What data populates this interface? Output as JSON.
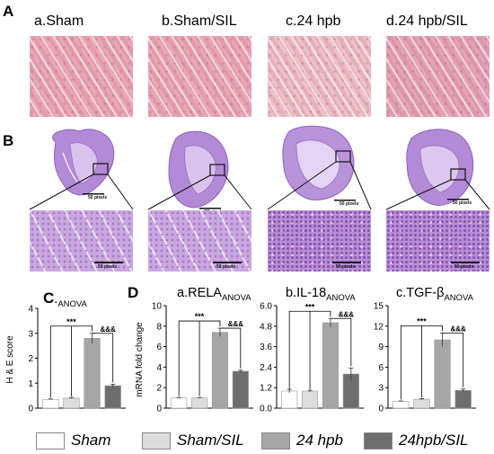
{
  "panels": {
    "A": {
      "label": "A",
      "titles": [
        "a.Sham",
        "b.Sham/SIL",
        "c.24 hpb",
        "d.24 hpb/SIL"
      ]
    },
    "B": {
      "label": "B",
      "scale_small": "50 pixels",
      "scale_large": "50 pixels"
    },
    "C": {
      "label": "C",
      "title_prefix": ".",
      "title_sub": "ANOVA"
    },
    "D": {
      "label": "D",
      "ylabel": "mRNA fold change"
    }
  },
  "legend": {
    "items": [
      {
        "label": "Sham",
        "color": "#ffffff",
        "italic": true
      },
      {
        "label": "Sham/SIL",
        "color": "#dcdcdc",
        "italic": true
      },
      {
        "label": "24 hpb",
        "color": "#a6a6a6",
        "italic": true
      },
      {
        "label": "24hpb/SIL",
        "color": "#6e6e6e",
        "italic": true
      }
    ]
  },
  "colors": {
    "sham": "#ffffff",
    "sham_sil": "#dcdcdc",
    "hpb24": "#a6a6a6",
    "hpb24_sil": "#6e6e6e"
  },
  "chart_data": [
    {
      "type": "bar",
      "panel": "C",
      "title": "C.ANOVA",
      "ylabel": "H & E score",
      "categories": [
        "Sham",
        "Sham/SIL",
        "24 hpb",
        "24hpb/SIL"
      ],
      "values": [
        0.35,
        0.4,
        2.8,
        0.9
      ],
      "errors": [
        0.02,
        0.03,
        0.2,
        0.06
      ],
      "ylim": [
        0,
        4
      ],
      "yticks": [
        "0",
        "1",
        "2",
        "3",
        "4"
      ],
      "sig": [
        "***",
        "&&&"
      ]
    },
    {
      "type": "bar",
      "panel": "D-a",
      "title": "a.RELA",
      "title_sub": "ANOVA",
      "categories": [
        "Sham",
        "Sham/SIL",
        "24 hpb",
        "24hpb/SIL"
      ],
      "values": [
        1.0,
        1.0,
        7.4,
        3.6
      ],
      "errors": [
        0.04,
        0.04,
        0.4,
        0.1
      ],
      "ylim": [
        0,
        10
      ],
      "yticks": [
        "0",
        "2",
        "4",
        "6",
        "8",
        "10"
      ],
      "sig": [
        "***",
        "&&&"
      ]
    },
    {
      "type": "bar",
      "panel": "D-b",
      "title": "b.IL-18",
      "title_sub": "ANOVA",
      "categories": [
        "Sham",
        "Sham/SIL",
        "24 hpb",
        "24hpb/SIL"
      ],
      "values": [
        1.0,
        1.0,
        5.0,
        2.0
      ],
      "errors": [
        0.1,
        0.05,
        0.25,
        0.35
      ],
      "ylim": [
        0,
        6.0
      ],
      "yticks": [
        "0.0",
        "1.2",
        "2.4",
        "3.6",
        "4.8",
        "6.0"
      ],
      "sig": [
        "***",
        "&&&"
      ]
    },
    {
      "type": "bar",
      "panel": "D-c",
      "title": "c.TGF-β",
      "title_sub": "ANOVA",
      "categories": [
        "Sham",
        "Sham/SIL",
        "24 hpb",
        "24hpb/SIL"
      ],
      "values": [
        1.0,
        1.3,
        10.0,
        2.6
      ],
      "errors": [
        0.05,
        0.1,
        1.0,
        0.2
      ],
      "ylim": [
        0,
        15
      ],
      "yticks": [
        "0",
        "3",
        "6",
        "9",
        "12",
        "15"
      ],
      "sig": [
        "***",
        "&&&"
      ]
    }
  ]
}
